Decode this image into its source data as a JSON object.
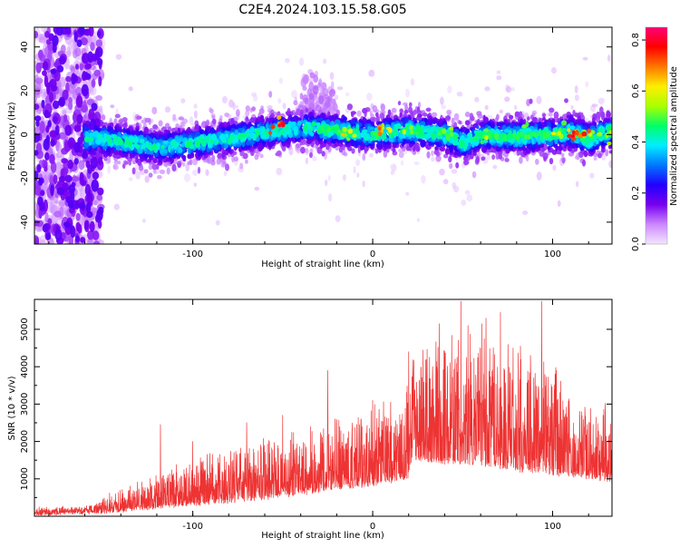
{
  "title": "C2E4.2024.103.15.58.G05",
  "colors": {
    "signal": "#ee3333",
    "axis": "#000000",
    "background": "#ffffff"
  },
  "chart_data": [
    {
      "type": "heatmap",
      "xlabel": "Height of straight line (km)",
      "ylabel": "Frequency (Hz)",
      "xlim": [
        -188,
        133
      ],
      "ylim": [
        -50,
        49
      ],
      "xticks": [
        -100,
        0,
        100
      ],
      "yticks": [
        -40,
        -20,
        0,
        20,
        40
      ],
      "colorbar": {
        "label": "Normalized spectral amplitude",
        "range": [
          0.0,
          0.85
        ],
        "ticks": [
          0.0,
          0.2,
          0.4,
          0.6,
          0.8
        ],
        "colors": [
          "#f4e6ff",
          "#cc88ff",
          "#7700ee",
          "#2200ff",
          "#0077ff",
          "#00eeff",
          "#00ff66",
          "#aaff00",
          "#ffee00",
          "#ff7700",
          "#ff0000",
          "#ff0077"
        ]
      },
      "band_center_hz": [
        [
          -155,
          -2
        ],
        [
          -140,
          -3
        ],
        [
          -120,
          -6
        ],
        [
          -100,
          -4
        ],
        [
          -80,
          -2
        ],
        [
          -60,
          1
        ],
        [
          -40,
          3
        ],
        [
          -20,
          2
        ],
        [
          0,
          0
        ],
        [
          20,
          2
        ],
        [
          40,
          0
        ],
        [
          50,
          -4
        ],
        [
          60,
          0
        ],
        [
          80,
          -1
        ],
        [
          100,
          0
        ],
        [
          110,
          1
        ],
        [
          120,
          -2
        ],
        [
          133,
          2
        ]
      ],
      "band_halfwidth_hz": 6,
      "hotspots_hz": [
        [
          -52,
          4,
          0.85
        ],
        [
          -30,
          3,
          0.5
        ],
        [
          -15,
          0,
          0.7
        ],
        [
          5,
          2,
          0.75
        ],
        [
          22,
          2,
          0.6
        ],
        [
          42,
          1,
          0.55
        ],
        [
          62,
          -1,
          0.6
        ],
        [
          85,
          2,
          0.55
        ],
        [
          102,
          1,
          0.7
        ],
        [
          110,
          0,
          0.8
        ],
        [
          118,
          1,
          0.8
        ],
        [
          128,
          -1,
          0.6
        ]
      ],
      "noise_region_km": [
        -188,
        -155
      ],
      "plume_km": [
        -40,
        -20
      ],
      "plume_max_hz": 30
    },
    {
      "type": "line",
      "xlabel": "Height of straight line (km)",
      "ylabel": "SNR (10 * v/v)",
      "xlim": [
        -188,
        133
      ],
      "ylim": [
        0,
        5800
      ],
      "xticks": [
        -100,
        0,
        100
      ],
      "yticks": [
        1000,
        2000,
        3000,
        4000,
        5000
      ],
      "envelope_km_snr": [
        [
          -188,
          250
        ],
        [
          -160,
          300
        ],
        [
          -140,
          700
        ],
        [
          -120,
          1100
        ],
        [
          -100,
          1500
        ],
        [
          -80,
          1700
        ],
        [
          -60,
          2000
        ],
        [
          -40,
          2300
        ],
        [
          -20,
          2600
        ],
        [
          -5,
          2700
        ],
        [
          10,
          3000
        ],
        [
          18,
          3300
        ],
        [
          22,
          4200
        ],
        [
          40,
          4800
        ],
        [
          55,
          5000
        ],
        [
          70,
          4700
        ],
        [
          85,
          4200
        ],
        [
          100,
          3800
        ],
        [
          115,
          3300
        ],
        [
          133,
          2700
        ]
      ],
      "baseline_km_snr": [
        [
          -188,
          120
        ],
        [
          -150,
          180
        ],
        [
          -120,
          300
        ],
        [
          -100,
          380
        ],
        [
          -80,
          450
        ],
        [
          -60,
          550
        ],
        [
          -40,
          650
        ],
        [
          -20,
          800
        ],
        [
          0,
          900
        ],
        [
          20,
          1100
        ],
        [
          22,
          1600
        ],
        [
          40,
          1500
        ],
        [
          60,
          1450
        ],
        [
          80,
          1300
        ],
        [
          100,
          1200
        ],
        [
          120,
          1100
        ],
        [
          133,
          1000
        ]
      ],
      "peaks_km_snr": [
        [
          -118,
          2450
        ],
        [
          -100,
          2000
        ],
        [
          -70,
          2500
        ],
        [
          -50,
          2700
        ],
        [
          -25,
          3900
        ],
        [
          0,
          3100
        ],
        [
          20,
          4400
        ],
        [
          37,
          5150
        ],
        [
          49,
          5750
        ],
        [
          53,
          5100
        ],
        [
          63,
          5300
        ],
        [
          71,
          5450
        ],
        [
          78,
          4500
        ],
        [
          94,
          5750
        ],
        [
          102,
          3900
        ],
        [
          128,
          2700
        ]
      ]
    }
  ]
}
